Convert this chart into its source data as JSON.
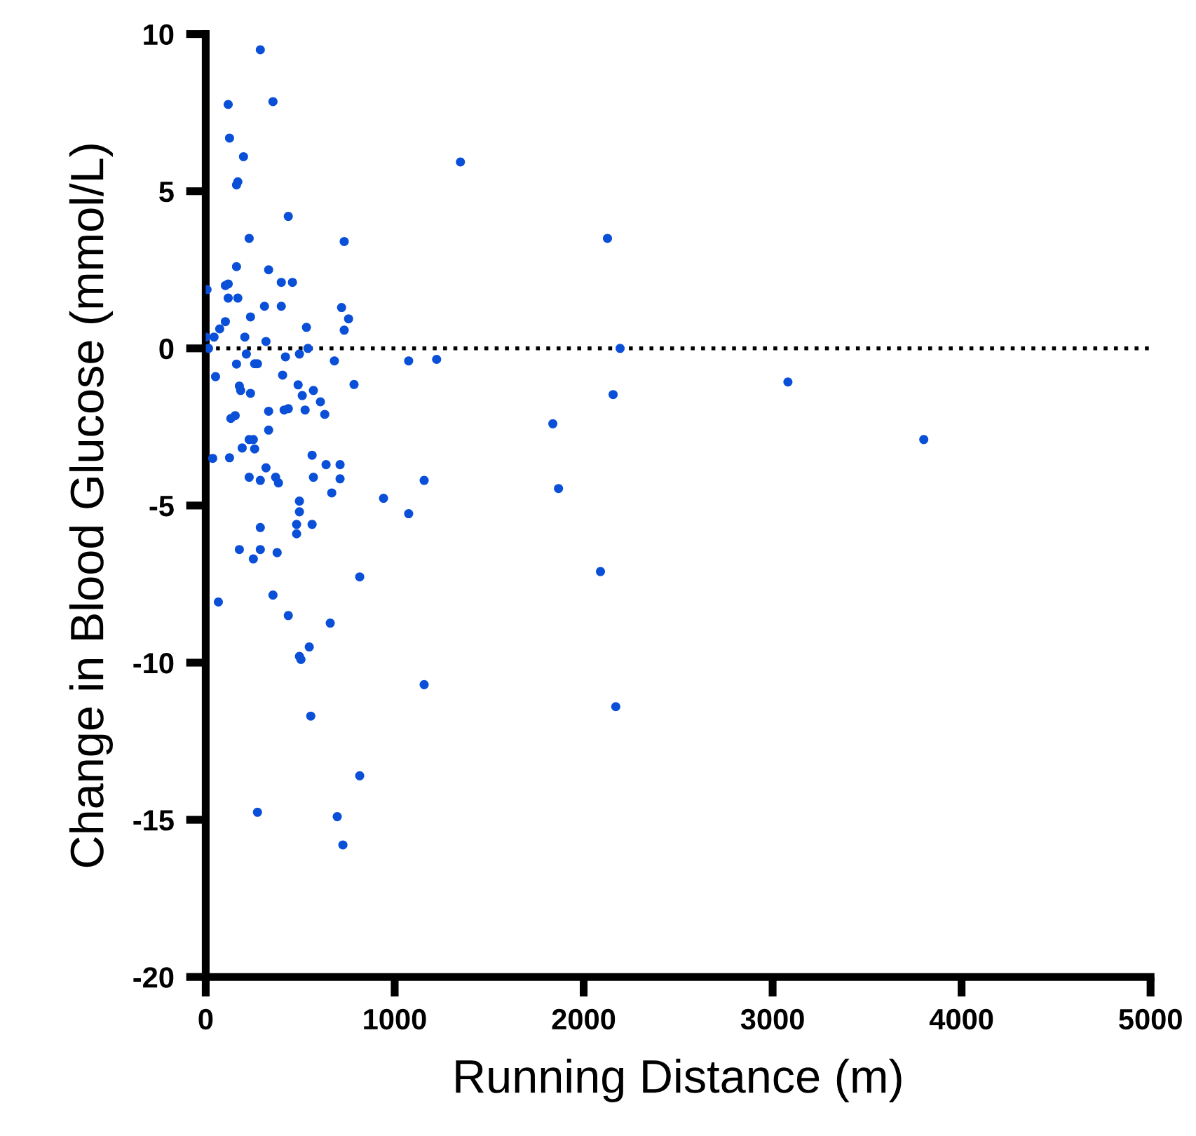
{
  "chart_data": {
    "type": "scatter",
    "xlabel": "Running Distance (m)",
    "ylabel": "Change in Blood Glucose (mmol/L)",
    "xlim": [
      0,
      5000
    ],
    "xticks": [
      0,
      1000,
      2000,
      3000,
      4000,
      5000
    ],
    "ylim": [
      -20,
      10
    ],
    "yticks": [
      -20,
      -15,
      -10,
      -5,
      0,
      5,
      10
    ],
    "grid": false,
    "marker": "circle",
    "ref_lines": [
      {
        "axis": "y",
        "value": 0,
        "line_style": "dotted",
        "color": "#000000"
      }
    ],
    "series": [
      {
        "color": "#0a4fd8",
        "x": [
          289,
          119,
          356,
          126,
          200,
          170,
          163,
          437,
          230,
          733,
          163,
          333,
          7,
          104,
          119,
          400,
          459,
          119,
          170,
          311,
          400,
          719,
          756,
          237,
          104,
          74,
          533,
          733,
          0,
          44,
          207,
          319,
          15,
          541,
          215,
          422,
          496,
          681,
          163,
          259,
          274,
          52,
          407,
          785,
          489,
          178,
          185,
          237,
          570,
          511,
          607,
          333,
          415,
          437,
          526,
          630,
          156,
          133,
          333,
          230,
          252,
          193,
          259,
          37,
          126,
          563,
          637,
          711,
          319,
          230,
          289,
          370,
          385,
          570,
          711,
          667,
          941,
          496,
          496,
          481,
          563,
          481,
          289,
          178,
          289,
          252,
          378,
          815,
          67,
          356,
          437,
          659,
          548,
          496,
          504,
          556,
          815,
          274,
          696,
          726,
          1348,
          1074,
          1222,
          1837,
          1156,
          1867,
          1074,
          1156,
          2126,
          2156,
          2193,
          2089,
          2170,
          3081,
          3800
        ],
        "values": [
          9.5,
          7.76,
          7.85,
          6.69,
          6.1,
          5.3,
          5.2,
          4.2,
          3.5,
          3.4,
          2.6,
          2.5,
          1.87,
          2.0,
          2.05,
          2.1,
          2.1,
          1.6,
          1.6,
          1.34,
          1.34,
          1.3,
          0.94,
          1.0,
          0.85,
          0.62,
          0.67,
          0.58,
          0.36,
          0.36,
          0.36,
          0.22,
          0.0,
          0.0,
          -0.18,
          -0.27,
          -0.18,
          -0.4,
          -0.5,
          -0.49,
          -0.49,
          -0.9,
          -0.85,
          -1.15,
          -1.16,
          -1.2,
          -1.34,
          -1.43,
          -1.34,
          -1.5,
          -1.7,
          -2.0,
          -1.96,
          -1.92,
          -1.96,
          -2.1,
          -2.14,
          -2.23,
          -2.6,
          -2.9,
          -2.9,
          -3.17,
          -3.2,
          -3.5,
          -3.48,
          -3.4,
          -3.7,
          -3.7,
          -3.8,
          -4.1,
          -4.2,
          -4.1,
          -4.28,
          -4.1,
          -4.15,
          -4.6,
          -4.77,
          -4.86,
          -5.2,
          -5.6,
          -5.6,
          -5.9,
          -5.7,
          -6.4,
          -6.4,
          -6.7,
          -6.5,
          -7.27,
          -8.07,
          -7.85,
          -8.5,
          -8.74,
          -9.5,
          -9.8,
          -9.9,
          -11.7,
          -13.6,
          -14.76,
          -14.9,
          -15.8,
          5.93,
          -0.4,
          -0.35,
          -2.4,
          -4.2,
          -4.46,
          -5.26,
          -10.7,
          3.5,
          -1.47,
          0.0,
          -7.1,
          -11.4,
          -1.07,
          -2.9
        ]
      }
    ]
  }
}
